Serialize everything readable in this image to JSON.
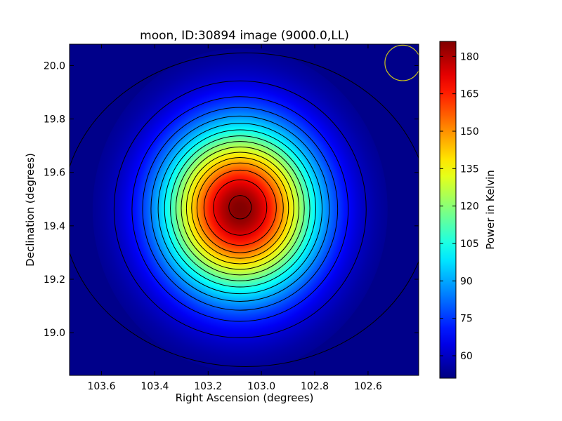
{
  "chart_data": {
    "type": "heatmap",
    "title": "moon, ID:30894 image (9000.0,LL)",
    "xlabel": "Right Ascension (degrees)",
    "ylabel": "Declination (degrees)",
    "colorbar_label": "Power in Kelvin",
    "colormap": "jet",
    "x_axis_inverted": true,
    "xlim": [
      103.72,
      102.41
    ],
    "ylim": [
      18.84,
      20.08
    ],
    "clim": [
      51,
      186
    ],
    "x_ticks": [
      103.6,
      103.4,
      103.2,
      103.0,
      102.8,
      102.6
    ],
    "x_tick_labels": [
      "103.6",
      "103.4",
      "103.2",
      "103.0",
      "102.8",
      "102.6"
    ],
    "y_ticks": [
      19.0,
      19.2,
      19.4,
      19.6,
      19.8,
      20.0
    ],
    "y_tick_labels": [
      "19.0",
      "19.2",
      "19.4",
      "19.6",
      "19.8",
      "20.0"
    ],
    "colorbar_ticks": [
      60,
      75,
      90,
      105,
      120,
      135,
      150,
      165,
      180
    ],
    "colorbar_tick_labels": [
      "60",
      "75",
      "90",
      "105",
      "120",
      "135",
      "150",
      "165",
      "180"
    ],
    "source": {
      "center_ra": 103.08,
      "center_dec": 19.46,
      "peak_kelvin": 186,
      "background_kelvin": 51
    },
    "contour_levels_kelvin": [
      54,
      60,
      68,
      76,
      84,
      92,
      100,
      108,
      116,
      124,
      132,
      140,
      148,
      158,
      170,
      183
    ],
    "beam_marker": {
      "center_ra": 102.47,
      "center_dec": 20.01,
      "radius_deg": 0.058,
      "color": "#c9c21a"
    },
    "grid": false
  }
}
